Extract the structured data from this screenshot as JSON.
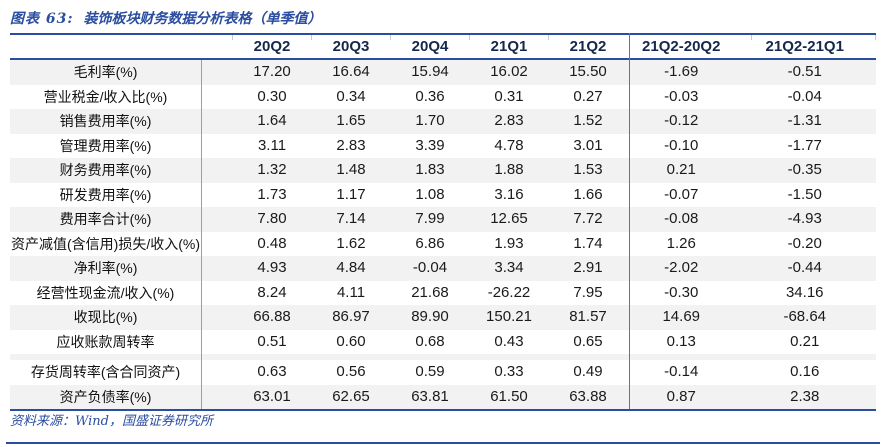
{
  "figure": {
    "title_prefix": "图表 63:",
    "title_text": "装饰板块财务数据分析表格（单季值）",
    "source": "资料来源：Wind，国盛证券研究所"
  },
  "colors": {
    "accent_blue": "#2a4da0",
    "divider_blue": "#4a78c0",
    "divider_gray": "#95a0ad",
    "row_shade": "#f2f2f3",
    "header_text": "#15284b"
  },
  "table": {
    "columns": [
      "20Q2",
      "20Q3",
      "20Q4",
      "21Q1",
      "21Q2",
      "21Q2-20Q2",
      "21Q2-21Q1"
    ],
    "spacer_after_row": 11,
    "rows": [
      {
        "label": "毛利率(%)",
        "values": [
          "17.20",
          "16.64",
          "15.94",
          "16.02",
          "15.50",
          "-1.69",
          "-0.51"
        ],
        "shaded": true
      },
      {
        "label": "营业税金/收入比(%)",
        "values": [
          "0.30",
          "0.34",
          "0.36",
          "0.31",
          "0.27",
          "-0.03",
          "-0.04"
        ],
        "shaded": false
      },
      {
        "label": "销售费用率(%)",
        "values": [
          "1.64",
          "1.65",
          "1.70",
          "2.83",
          "1.52",
          "-0.12",
          "-1.31"
        ],
        "shaded": true
      },
      {
        "label": "管理费用率(%)",
        "values": [
          "3.11",
          "2.83",
          "3.39",
          "4.78",
          "3.01",
          "-0.10",
          "-1.77"
        ],
        "shaded": false
      },
      {
        "label": "财务费用率(%)",
        "values": [
          "1.32",
          "1.48",
          "1.83",
          "1.88",
          "1.53",
          "0.21",
          "-0.35"
        ],
        "shaded": true
      },
      {
        "label": "研发费用率(%)",
        "values": [
          "1.73",
          "1.17",
          "1.08",
          "3.16",
          "1.66",
          "-0.07",
          "-1.50"
        ],
        "shaded": false
      },
      {
        "label": "费用率合计(%)",
        "values": [
          "7.80",
          "7.14",
          "7.99",
          "12.65",
          "7.72",
          "-0.08",
          "-4.93"
        ],
        "shaded": true
      },
      {
        "label": "资产减值(含信用)损失/收入(%)",
        "values": [
          "0.48",
          "1.62",
          "6.86",
          "1.93",
          "1.74",
          "1.26",
          "-0.20"
        ],
        "shaded": false
      },
      {
        "label": "净利率(%)",
        "values": [
          "4.93",
          "4.84",
          "-0.04",
          "3.34",
          "2.91",
          "-2.02",
          "-0.44"
        ],
        "shaded": true
      },
      {
        "label": "经营性现金流/收入(%)",
        "values": [
          "8.24",
          "4.11",
          "21.68",
          "-26.22",
          "7.95",
          "-0.30",
          "34.16"
        ],
        "shaded": false
      },
      {
        "label": "收现比(%)",
        "values": [
          "66.88",
          "86.97",
          "89.90",
          "150.21",
          "81.57",
          "14.69",
          "-68.64"
        ],
        "shaded": true
      },
      {
        "label": "应收账款周转率",
        "values": [
          "0.51",
          "0.60",
          "0.68",
          "0.43",
          "0.65",
          "0.13",
          "0.21"
        ],
        "shaded": false
      },
      {
        "label": "存货周转率(含合同资产)",
        "values": [
          "0.63",
          "0.56",
          "0.59",
          "0.33",
          "0.49",
          "-0.14",
          "0.16"
        ],
        "shaded": false
      },
      {
        "label": "资产负债率(%)",
        "values": [
          "63.01",
          "62.65",
          "63.81",
          "61.50",
          "63.88",
          "0.87",
          "2.38"
        ],
        "shaded": true
      }
    ]
  }
}
